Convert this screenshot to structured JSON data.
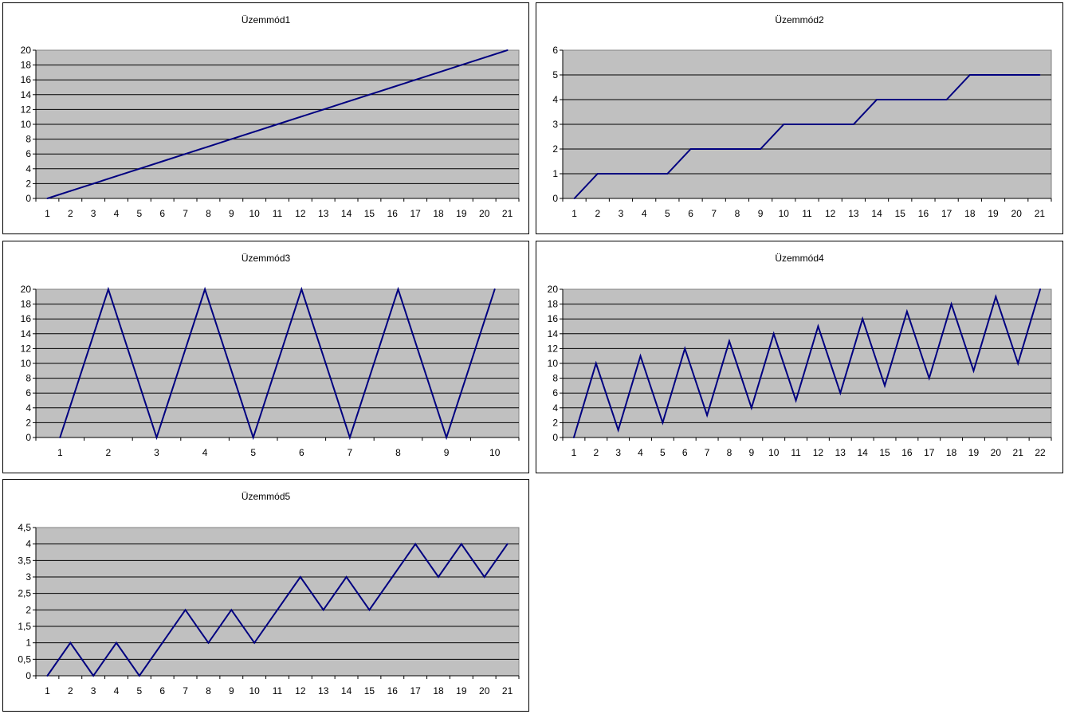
{
  "colors": {
    "plot_bg": "#c0c0c0",
    "line": "#000080",
    "grid": "#000000"
  },
  "chart_data": [
    {
      "type": "line",
      "title": "Üzemmód1",
      "x": [
        1,
        2,
        3,
        4,
        5,
        6,
        7,
        8,
        9,
        10,
        11,
        12,
        13,
        14,
        15,
        16,
        17,
        18,
        19,
        20,
        21
      ],
      "values": [
        0,
        1,
        2,
        3,
        4,
        5,
        6,
        7,
        8,
        9,
        10,
        11,
        12,
        13,
        14,
        15,
        16,
        17,
        18,
        19,
        20
      ],
      "ylim": [
        0,
        20
      ],
      "yticks": [
        0,
        2,
        4,
        6,
        8,
        10,
        12,
        14,
        16,
        18,
        20
      ],
      "ytick_labels": [
        "0",
        "2",
        "4",
        "6",
        "8",
        "10",
        "12",
        "14",
        "16",
        "18",
        "20"
      ],
      "grid": true
    },
    {
      "type": "line",
      "title": "Üzemmód2",
      "x": [
        1,
        2,
        3,
        4,
        5,
        6,
        7,
        8,
        9,
        10,
        11,
        12,
        13,
        14,
        15,
        16,
        17,
        18,
        19,
        20,
        21
      ],
      "values": [
        0,
        1,
        1,
        1,
        1,
        2,
        2,
        2,
        2,
        3,
        3,
        3,
        3,
        4,
        4,
        4,
        4,
        5,
        5,
        5,
        5
      ],
      "ylim": [
        0,
        6
      ],
      "yticks": [
        0,
        1,
        2,
        3,
        4,
        5,
        6
      ],
      "ytick_labels": [
        "0",
        "1",
        "2",
        "3",
        "4",
        "5",
        "6"
      ],
      "grid": true
    },
    {
      "type": "line",
      "title": "Üzemmód3",
      "x": [
        1,
        2,
        3,
        4,
        5,
        6,
        7,
        8,
        9,
        10
      ],
      "values": [
        0,
        20,
        0,
        20,
        0,
        20,
        0,
        20,
        0,
        20
      ],
      "ylim": [
        0,
        20
      ],
      "yticks": [
        0,
        2,
        4,
        6,
        8,
        10,
        12,
        14,
        16,
        18,
        20
      ],
      "ytick_labels": [
        "0",
        "2",
        "4",
        "6",
        "8",
        "10",
        "12",
        "14",
        "16",
        "18",
        "20"
      ],
      "grid": true
    },
    {
      "type": "line",
      "title": "Üzemmód4",
      "x": [
        1,
        2,
        3,
        4,
        5,
        6,
        7,
        8,
        9,
        10,
        11,
        12,
        13,
        14,
        15,
        16,
        17,
        18,
        19,
        20,
        21,
        22
      ],
      "values": [
        0,
        10,
        1,
        11,
        2,
        12,
        3,
        13,
        4,
        14,
        5,
        15,
        6,
        16,
        7,
        17,
        8,
        18,
        9,
        19,
        10,
        20
      ],
      "ylim": [
        0,
        20
      ],
      "yticks": [
        0,
        2,
        4,
        6,
        8,
        10,
        12,
        14,
        16,
        18,
        20
      ],
      "ytick_labels": [
        "0",
        "2",
        "4",
        "6",
        "8",
        "10",
        "12",
        "14",
        "16",
        "18",
        "20"
      ],
      "grid": true
    },
    {
      "type": "line",
      "title": "Üzemmód5",
      "x": [
        1,
        2,
        3,
        4,
        5,
        6,
        7,
        8,
        9,
        10,
        11,
        12,
        13,
        14,
        15,
        16,
        17,
        18,
        19,
        20,
        21
      ],
      "values": [
        0,
        1,
        0,
        1,
        0,
        1,
        2,
        1,
        2,
        1,
        2,
        3,
        2,
        3,
        2,
        3,
        4,
        3,
        4,
        3,
        4
      ],
      "ylim": [
        0,
        4.5
      ],
      "yticks": [
        0,
        0.5,
        1,
        1.5,
        2,
        2.5,
        3,
        3.5,
        4,
        4.5
      ],
      "ytick_labels": [
        "0",
        "0,5",
        "1",
        "1,5",
        "2",
        "2,5",
        "3",
        "3,5",
        "4",
        "4,5"
      ],
      "grid": true
    }
  ]
}
